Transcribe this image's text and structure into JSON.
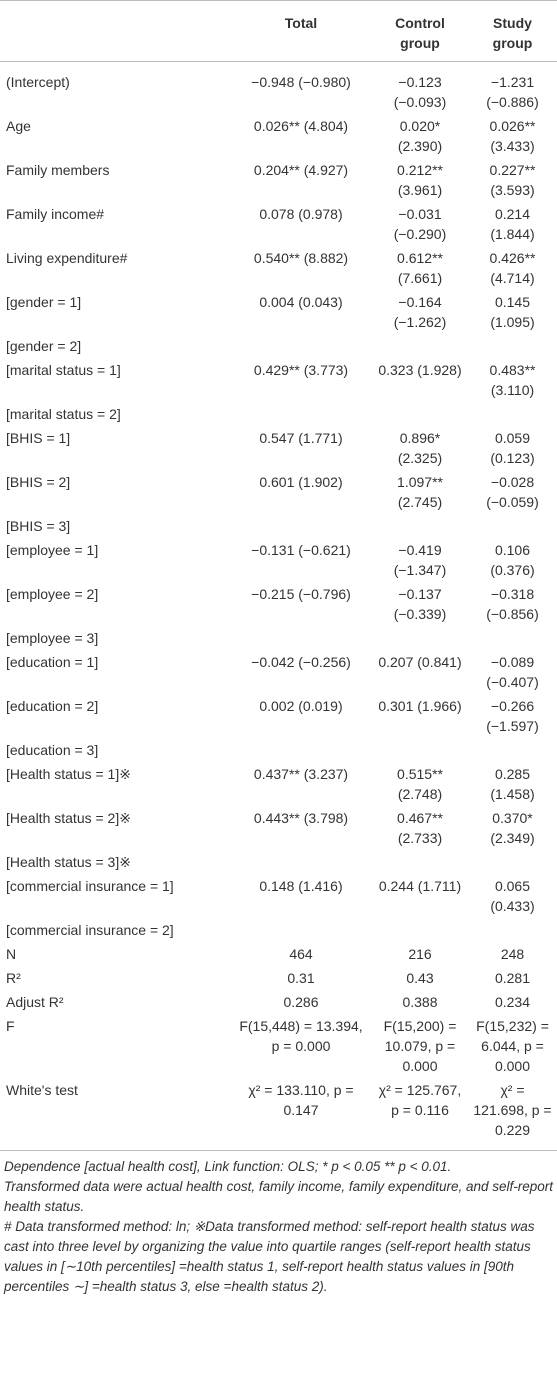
{
  "table": {
    "columns": [
      "Total",
      "Control group",
      "Study group"
    ],
    "rows": [
      {
        "label": "(Intercept)",
        "cells": [
          "−0.948 (−0.980)",
          "−0.123 (−0.093)",
          "−1.231 (−0.886)"
        ]
      },
      {
        "label": "Age",
        "cells": [
          "0.026** (4.804)",
          "0.020* (2.390)",
          "0.026** (3.433)"
        ]
      },
      {
        "label": "Family members",
        "cells": [
          "0.204** (4.927)",
          "0.212** (3.961)",
          "0.227** (3.593)"
        ]
      },
      {
        "label": "Family income#",
        "cells": [
          "0.078 (0.978)",
          "−0.031 (−0.290)",
          "0.214 (1.844)"
        ]
      },
      {
        "label": "Living expenditure#",
        "cells": [
          "0.540** (8.882)",
          "0.612** (7.661)",
          "0.426** (4.714)"
        ]
      },
      {
        "label": "[gender = 1]",
        "cells": [
          "0.004 (0.043)",
          "−0.164 (−1.262)",
          "0.145 (1.095)"
        ]
      },
      {
        "label": "[gender = 2]"
      },
      {
        "label": "[marital status = 1]",
        "cells": [
          "0.429** (3.773)",
          "0.323 (1.928)",
          "0.483** (3.110)"
        ]
      },
      {
        "label": "[marital status = 2]"
      },
      {
        "label": "[BHIS = 1]",
        "cells": [
          "0.547 (1.771)",
          "0.896* (2.325)",
          "0.059 (0.123)"
        ]
      },
      {
        "label": "[BHIS = 2]",
        "cells": [
          "0.601 (1.902)",
          "1.097** (2.745)",
          "−0.028 (−0.059)"
        ]
      },
      {
        "label": "[BHIS = 3]"
      },
      {
        "label": "[employee = 1]",
        "cells": [
          "−0.131 (−0.621)",
          "−0.419 (−1.347)",
          "0.106 (0.376)"
        ]
      },
      {
        "label": "[employee = 2]",
        "cells": [
          "−0.215 (−0.796)",
          "−0.137 (−0.339)",
          "−0.318 (−0.856)"
        ]
      },
      {
        "label": "[employee = 3]"
      },
      {
        "label": "[education = 1]",
        "cells": [
          "−0.042 (−0.256)",
          "0.207 (0.841)",
          "−0.089 (−0.407)"
        ]
      },
      {
        "label": "[education = 2]",
        "cells": [
          "0.002 (0.019)",
          "0.301 (1.966)",
          "−0.266 (−1.597)"
        ]
      },
      {
        "label": "[education = 3]"
      },
      {
        "label": "[Health status = 1]※",
        "cells": [
          "0.437** (3.237)",
          "0.515** (2.748)",
          "0.285 (1.458)"
        ]
      },
      {
        "label": "[Health status = 2]※",
        "cells": [
          "0.443** (3.798)",
          "0.467** (2.733)",
          "0.370* (2.349)"
        ]
      },
      {
        "label": "[Health status = 3]※"
      },
      {
        "label": "[commercial insurance = 1]",
        "cells": [
          "0.148 (1.416)",
          "0.244 (1.711)",
          "0.065 (0.433)"
        ]
      },
      {
        "label": "[commercial insurance = 2]"
      },
      {
        "label": "N",
        "cells": [
          "464",
          "216",
          "248"
        ]
      },
      {
        "label": "R²",
        "cells": [
          "0.31",
          "0.43",
          "0.281"
        ]
      },
      {
        "label": "Adjust R²",
        "cells": [
          "0.286",
          "0.388",
          "0.234"
        ]
      },
      {
        "label": "F",
        "cells": [
          "F(15,448) = 13.394, p = 0.000",
          "F(15,200) = 10.079, p = 0.000",
          "F(15,232) = 6.044, p = 0.000"
        ]
      },
      {
        "label": "White's test",
        "cells": [
          "χ² = 133.110, p = 0.147",
          "χ² = 125.767, p = 0.116",
          "χ² = 121.698, p = 0.229"
        ]
      }
    ]
  },
  "notes": [
    "Dependence [actual health cost], Link function: OLS; * p < 0.05 ** p < 0.01.",
    "Transformed data were actual health cost, family income, family expenditure, and self-report health status.",
    "# Data transformed method: ln; ※Data transformed method: self-report health status was cast into three level by organizing the value into quartile ranges (self-report health status values in [∼10th percentiles] =health status 1, self-report health status values in [90th percentiles ∼] =health status 3, else =health status 2)."
  ]
}
